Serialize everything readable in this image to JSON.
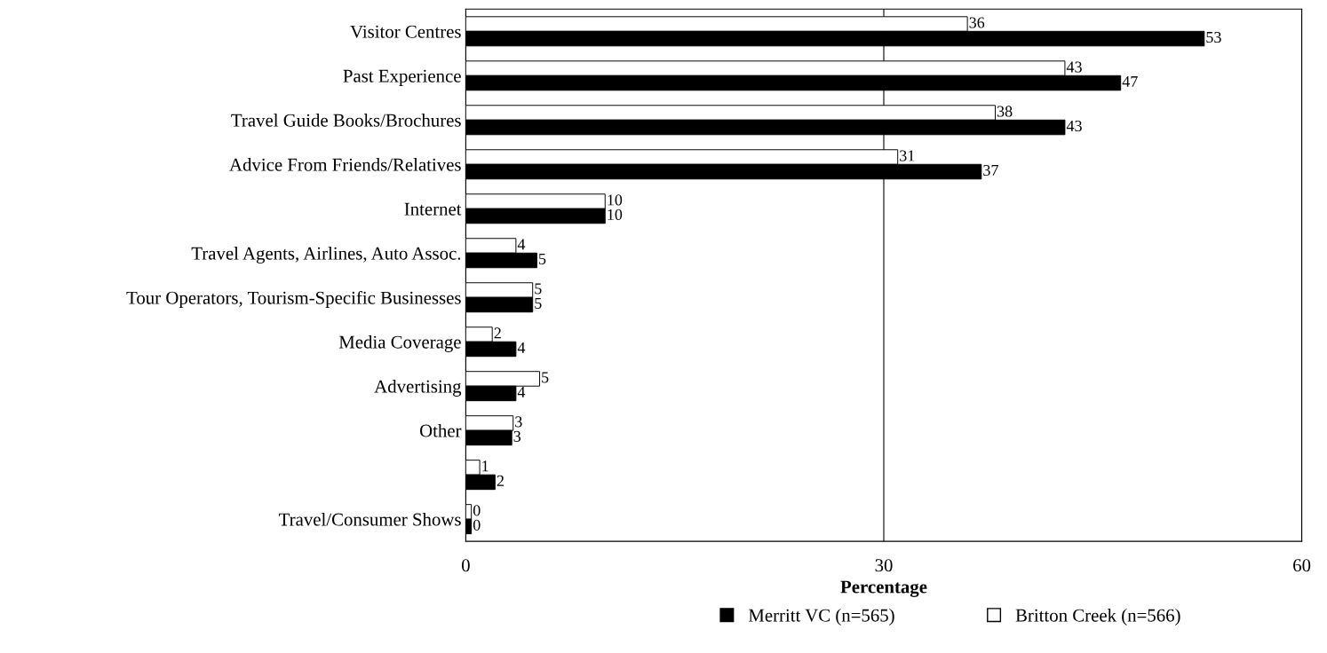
{
  "chart_data": {
    "type": "bar",
    "orientation": "horizontal",
    "xlabel": "Percentage",
    "categories": [
      "Visitor Centres",
      "Past Experience",
      "Travel Guide Books/Brochures",
      "Advice From Friends/Relatives",
      "Internet",
      "Travel Agents, Airlines, Auto Assoc.",
      "Tour Operators, Tourism-Specific Businesses",
      "Media Coverage",
      "Advertising",
      "Other",
      null,
      "Travel/Consumer Shows"
    ],
    "series": [
      {
        "name": "Britton Creek (n=566)",
        "color": "#ffffff",
        "values": [
          36,
          43,
          38,
          31,
          10,
          3.6,
          4.8,
          1.9,
          5.3,
          3.4,
          1.0,
          0.4
        ],
        "value_labels": [
          "36",
          "43",
          "38",
          "31",
          "10",
          "4",
          "5",
          "2",
          "5",
          "3",
          "1",
          "0"
        ]
      },
      {
        "name": "Merritt VC (n=565)",
        "color": "#000000",
        "values": [
          53,
          47,
          43,
          37,
          10,
          5.1,
          4.8,
          3.6,
          3.6,
          3.3,
          2.1,
          0.4
        ],
        "value_labels": [
          "53",
          "47",
          "43",
          "37",
          "10",
          "5",
          "5",
          "4",
          "4",
          "3",
          "2",
          "0"
        ]
      }
    ],
    "xlim": [
      0,
      60
    ],
    "xticks": [
      0,
      30,
      60
    ],
    "grid": "x",
    "legend": "bottom"
  }
}
